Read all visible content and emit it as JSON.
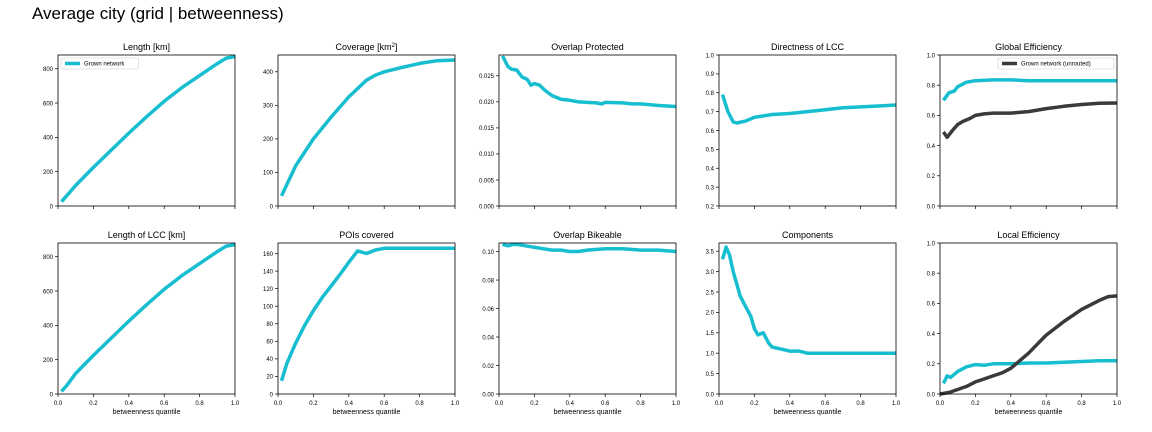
{
  "figure": {
    "title": "Average city (grid | betweenness)",
    "xlabel": "betweenness quantile",
    "colors": {
      "grown": "#17becf",
      "unrouted": "#3a3a3a"
    }
  },
  "chart_data": [
    {
      "type": "line",
      "title": "Length [km]",
      "xlabel": "",
      "xlim": [
        0,
        1
      ],
      "ylim": [
        0,
        880
      ],
      "yticks": [
        0,
        200,
        400,
        600,
        800
      ],
      "legend": {
        "placement": "top-left",
        "entries": [
          "Grown network"
        ]
      },
      "series": [
        {
          "name": "Grown network",
          "color": "#17becf",
          "x": [
            0.02,
            0.1,
            0.2,
            0.3,
            0.4,
            0.5,
            0.6,
            0.7,
            0.8,
            0.9,
            0.95,
            1.0
          ],
          "y": [
            25,
            120,
            225,
            325,
            425,
            520,
            610,
            690,
            760,
            830,
            862,
            870
          ]
        }
      ]
    },
    {
      "type": "line",
      "title": "Coverage [km²]",
      "xlabel": "",
      "xlim": [
        0,
        1
      ],
      "ylim": [
        0,
        450
      ],
      "yticks": [
        0,
        100,
        200,
        300,
        400
      ],
      "series": [
        {
          "color": "#17becf",
          "x": [
            0.02,
            0.1,
            0.2,
            0.3,
            0.4,
            0.5,
            0.55,
            0.6,
            0.7,
            0.8,
            0.9,
            1.0
          ],
          "y": [
            30,
            120,
            200,
            265,
            325,
            375,
            390,
            400,
            413,
            425,
            433,
            435
          ]
        }
      ]
    },
    {
      "type": "line",
      "title": "Overlap Protected",
      "xlabel": "",
      "xlim": [
        0,
        1
      ],
      "ylim": [
        0,
        0.029
      ],
      "yticks": [
        0.0,
        0.005,
        0.01,
        0.015,
        0.02,
        0.025
      ],
      "ytick_labels": [
        "0.000",
        "0.005",
        "0.010",
        "0.015",
        "0.020",
        "0.025"
      ],
      "series": [
        {
          "color": "#17becf",
          "x": [
            0.02,
            0.05,
            0.07,
            0.1,
            0.13,
            0.16,
            0.18,
            0.2,
            0.23,
            0.26,
            0.3,
            0.35,
            0.4,
            0.45,
            0.5,
            0.55,
            0.58,
            0.6,
            0.7,
            0.75,
            0.8,
            0.9,
            1.0
          ],
          "y": [
            0.0288,
            0.0268,
            0.0263,
            0.0261,
            0.0248,
            0.0243,
            0.0232,
            0.0235,
            0.0232,
            0.0222,
            0.0212,
            0.0205,
            0.0203,
            0.02,
            0.0199,
            0.0198,
            0.0196,
            0.0199,
            0.0198,
            0.0196,
            0.0196,
            0.0193,
            0.0191
          ]
        }
      ]
    },
    {
      "type": "line",
      "title": "Directness of LCC",
      "xlabel": "",
      "xlim": [
        0,
        1
      ],
      "ylim": [
        0.2,
        1.0
      ],
      "yticks": [
        0.2,
        0.3,
        0.4,
        0.5,
        0.6,
        0.7,
        0.8,
        0.9,
        1.0
      ],
      "ytick_labels": [
        "0.2",
        "0.3",
        "0.4",
        "0.5",
        "0.6",
        "0.7",
        "0.8",
        "0.9",
        "1.0"
      ],
      "series": [
        {
          "color": "#17becf",
          "x": [
            0.02,
            0.05,
            0.08,
            0.1,
            0.15,
            0.2,
            0.3,
            0.4,
            0.5,
            0.6,
            0.7,
            0.8,
            0.9,
            1.0
          ],
          "y": [
            0.79,
            0.7,
            0.645,
            0.64,
            0.65,
            0.67,
            0.685,
            0.69,
            0.7,
            0.71,
            0.72,
            0.725,
            0.73,
            0.735
          ]
        }
      ]
    },
    {
      "type": "line",
      "title": "Global Efficiency",
      "xlabel": "",
      "xlim": [
        0,
        1
      ],
      "ylim": [
        0,
        1.0
      ],
      "yticks": [
        0.0,
        0.2,
        0.4,
        0.6,
        0.8,
        1.0
      ],
      "ytick_labels": [
        "0.0",
        "0.2",
        "0.4",
        "0.6",
        "0.8",
        "1.0"
      ],
      "legend": {
        "placement": "top-right",
        "entries": [
          "Grown network (unrouted)"
        ]
      },
      "series": [
        {
          "color": "#17becf",
          "x": [
            0.02,
            0.05,
            0.08,
            0.1,
            0.15,
            0.2,
            0.3,
            0.4,
            0.5,
            0.6,
            0.7,
            0.8,
            0.9,
            1.0
          ],
          "y": [
            0.7,
            0.75,
            0.76,
            0.79,
            0.82,
            0.83,
            0.835,
            0.835,
            0.83,
            0.83,
            0.83,
            0.83,
            0.83,
            0.83
          ]
        },
        {
          "name": "Grown network (unrouted)",
          "color": "#3a3a3a",
          "x": [
            0.02,
            0.04,
            0.07,
            0.1,
            0.13,
            0.17,
            0.2,
            0.25,
            0.3,
            0.4,
            0.5,
            0.6,
            0.7,
            0.8,
            0.9,
            1.0
          ],
          "y": [
            0.49,
            0.455,
            0.5,
            0.54,
            0.56,
            0.58,
            0.6,
            0.61,
            0.615,
            0.615,
            0.625,
            0.645,
            0.66,
            0.672,
            0.68,
            0.682
          ]
        }
      ]
    },
    {
      "type": "line",
      "title": "Length of LCC [km]",
      "xlabel": "betweenness quantile",
      "xlim": [
        0,
        1
      ],
      "ylim": [
        0,
        880
      ],
      "yticks": [
        0,
        200,
        400,
        600,
        800
      ],
      "xticks": [
        0.0,
        0.2,
        0.4,
        0.6,
        0.8,
        1.0
      ],
      "series": [
        {
          "color": "#17becf",
          "x": [
            0.02,
            0.05,
            0.1,
            0.2,
            0.3,
            0.4,
            0.5,
            0.6,
            0.7,
            0.8,
            0.9,
            0.95,
            1.0
          ],
          "y": [
            15,
            50,
            120,
            225,
            325,
            425,
            520,
            610,
            690,
            760,
            830,
            862,
            870
          ]
        }
      ]
    },
    {
      "type": "line",
      "title": "POIs covered",
      "xlabel": "betweenness quantile",
      "xlim": [
        0,
        1
      ],
      "ylim": [
        0,
        172
      ],
      "yticks": [
        0,
        20,
        40,
        60,
        80,
        100,
        120,
        140,
        160
      ],
      "xticks": [
        0.0,
        0.2,
        0.4,
        0.6,
        0.8,
        1.0
      ],
      "series": [
        {
          "color": "#17becf",
          "x": [
            0.02,
            0.05,
            0.1,
            0.15,
            0.2,
            0.25,
            0.3,
            0.35,
            0.4,
            0.45,
            0.5,
            0.55,
            0.6,
            0.7,
            0.8,
            0.9,
            1.0
          ],
          "y": [
            15,
            35,
            58,
            78,
            95,
            110,
            123,
            136,
            150,
            163,
            160,
            164,
            166,
            166,
            166,
            166,
            166
          ]
        }
      ]
    },
    {
      "type": "line",
      "title": "Overlap Bikeable",
      "xlabel": "betweenness quantile",
      "xlim": [
        0,
        1
      ],
      "ylim": [
        0,
        0.106
      ],
      "yticks": [
        0.0,
        0.02,
        0.04,
        0.06,
        0.08,
        0.1
      ],
      "ytick_labels": [
        "0.00",
        "0.02",
        "0.04",
        "0.06",
        "0.08",
        "0.10"
      ],
      "xticks": [
        0.0,
        0.2,
        0.4,
        0.6,
        0.8,
        1.0
      ],
      "series": [
        {
          "color": "#17becf",
          "x": [
            0.02,
            0.05,
            0.08,
            0.1,
            0.15,
            0.2,
            0.3,
            0.35,
            0.4,
            0.45,
            0.5,
            0.6,
            0.7,
            0.8,
            0.9,
            1.0
          ],
          "y": [
            0.105,
            0.104,
            0.105,
            0.105,
            0.104,
            0.103,
            0.101,
            0.101,
            0.1,
            0.1,
            0.101,
            0.102,
            0.102,
            0.101,
            0.101,
            0.1
          ]
        }
      ]
    },
    {
      "type": "line",
      "title": "Components",
      "xlabel": "betweenness quantile",
      "xlim": [
        0,
        1
      ],
      "ylim": [
        0,
        3.7
      ],
      "yticks": [
        0.0,
        0.5,
        1.0,
        1.5,
        2.0,
        2.5,
        3.0,
        3.5
      ],
      "ytick_labels": [
        "0.0",
        "0.5",
        "1.0",
        "1.5",
        "2.0",
        "2.5",
        "3.0",
        "3.5"
      ],
      "xticks": [
        0.0,
        0.2,
        0.4,
        0.6,
        0.8,
        1.0
      ],
      "series": [
        {
          "color": "#17becf",
          "x": [
            0.02,
            0.04,
            0.06,
            0.08,
            0.1,
            0.12,
            0.15,
            0.18,
            0.2,
            0.22,
            0.25,
            0.28,
            0.3,
            0.35,
            0.4,
            0.45,
            0.5,
            0.55,
            0.6,
            0.7,
            0.8,
            0.9,
            1.0
          ],
          "y": [
            3.3,
            3.6,
            3.4,
            3.0,
            2.7,
            2.4,
            2.15,
            1.9,
            1.6,
            1.45,
            1.5,
            1.25,
            1.15,
            1.1,
            1.05,
            1.05,
            1.0,
            1.0,
            1.0,
            1.0,
            1.0,
            1.0,
            1.0
          ]
        }
      ]
    },
    {
      "type": "line",
      "title": "Local Efficiency",
      "xlabel": "betweenness quantile",
      "xlim": [
        0,
        1
      ],
      "ylim": [
        0,
        1.0
      ],
      "yticks": [
        0.0,
        0.2,
        0.4,
        0.6,
        0.8,
        1.0
      ],
      "ytick_labels": [
        "0.0",
        "0.2",
        "0.4",
        "0.6",
        "0.8",
        "1.0"
      ],
      "xticks": [
        0.0,
        0.2,
        0.4,
        0.6,
        0.8,
        1.0
      ],
      "series": [
        {
          "color": "#17becf",
          "x": [
            0.02,
            0.04,
            0.06,
            0.1,
            0.15,
            0.2,
            0.25,
            0.3,
            0.4,
            0.5,
            0.6,
            0.7,
            0.8,
            0.9,
            1.0
          ],
          "y": [
            0.07,
            0.12,
            0.11,
            0.15,
            0.18,
            0.195,
            0.19,
            0.2,
            0.2,
            0.205,
            0.205,
            0.21,
            0.215,
            0.22,
            0.22
          ]
        },
        {
          "color": "#3a3a3a",
          "x": [
            0.0,
            0.05,
            0.1,
            0.15,
            0.2,
            0.25,
            0.3,
            0.35,
            0.4,
            0.45,
            0.5,
            0.55,
            0.6,
            0.7,
            0.8,
            0.9,
            0.95,
            1.0
          ],
          "y": [
            0.0,
            0.01,
            0.03,
            0.05,
            0.08,
            0.1,
            0.12,
            0.14,
            0.17,
            0.22,
            0.27,
            0.33,
            0.39,
            0.48,
            0.56,
            0.62,
            0.645,
            0.65
          ]
        }
      ]
    }
  ]
}
